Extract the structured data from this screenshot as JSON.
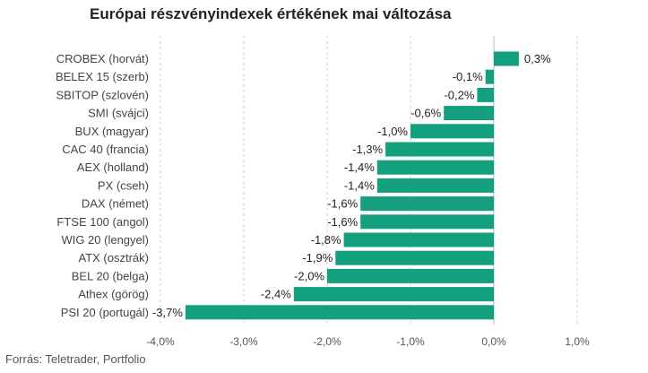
{
  "source_note": "Forrás: Teletrader, Portfolio",
  "chart_data": {
    "type": "bar",
    "orientation": "horizontal",
    "title": "Európai részvényindexek értékének mai változása",
    "categories": [
      "CROBEX (horvát)",
      "BELEX 15 (szerb)",
      "SBITOP (szlovén)",
      "SMI (svájci)",
      "BUX (magyar)",
      "CAC 40 (francia)",
      "AEX (holland)",
      "PX (cseh)",
      "DAX (német)",
      "FTSE 100 (angol)",
      "WIG 20 (lengyel)",
      "ATX (osztrák)",
      "BEL 20 (belga)",
      "Athex (görög)",
      "PSI 20 (portugál)"
    ],
    "values": [
      0.3,
      -0.1,
      -0.2,
      -0.6,
      -1.0,
      -1.3,
      -1.4,
      -1.4,
      -1.6,
      -1.6,
      -1.8,
      -1.9,
      -2.0,
      -2.4,
      -3.7
    ],
    "value_labels": [
      "0,3%",
      "-0,1%",
      "-0,2%",
      "-0,6%",
      "-1,0%",
      "-1,3%",
      "-1,4%",
      "-1,4%",
      "-1,6%",
      "-1,6%",
      "-1,8%",
      "-1,9%",
      "-2,0%",
      "-2,4%",
      "-3,7%"
    ],
    "xlim": [
      -4.0,
      1.0
    ],
    "xticks": [
      -4.0,
      -3.0,
      -2.0,
      -1.0,
      0.0,
      1.0
    ],
    "xtick_labels": [
      "-4,0%",
      "-3,0%",
      "-2,0%",
      "-1,0%",
      "0,0%",
      "1,0%"
    ],
    "xlabel": "",
    "ylabel": "",
    "grid": true,
    "legend": "none",
    "bar_color": "#12a07f"
  }
}
